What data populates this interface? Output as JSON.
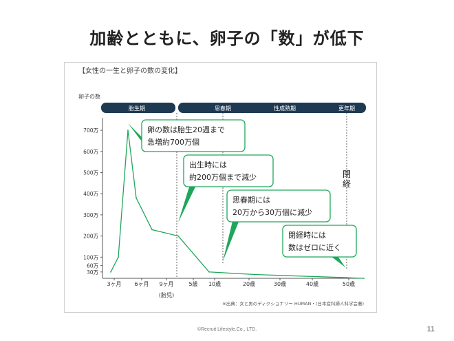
{
  "slide_title": "加齢とともに、卵子の「数」が低下",
  "footer": "©Recruit Lifestyle.Co., LTD.",
  "page_number": "11",
  "colors": {
    "line": "#1fa65a",
    "bar": "#1e3a52",
    "callout_border": "#1fa65a",
    "axis": "#555555"
  },
  "chart_data": {
    "type": "line",
    "title": "【女性の一生と卵子の数の変化】",
    "ylabel": "卵子の数",
    "source": "※出典：女と男のディクショナリー HUMAN・(日本産科婦人科学会著)",
    "ylim": [
      0,
      750
    ],
    "y_ticks": [
      {
        "value": 30,
        "label": "30万"
      },
      {
        "value": 60,
        "label": "60万"
      },
      {
        "value": 100,
        "label": "100万"
      },
      {
        "value": 200,
        "label": "200万"
      },
      {
        "value": 300,
        "label": "300万"
      },
      {
        "value": 400,
        "label": "400万"
      },
      {
        "value": 500,
        "label": "500万"
      },
      {
        "value": 600,
        "label": "600万"
      },
      {
        "value": 700,
        "label": "700万"
      }
    ],
    "x_ticks": [
      "3ヶ月",
      "6ヶ月",
      "9ヶ月",
      "5歳",
      "10歳",
      "20歳",
      "30歳",
      "40歳",
      "50歳"
    ],
    "x_sub_label": "(胎児)",
    "stages": [
      "胎生期",
      "思春期",
      "性成熟期",
      "更年期"
    ],
    "series": [
      {
        "points": [
          {
            "x": "2ヶ月",
            "y": 30
          },
          {
            "x": "3ヶ月",
            "y": 100
          },
          {
            "x": "5ヶ月",
            "y": 700
          },
          {
            "x": "6ヶ月",
            "y": 380
          },
          {
            "x": "7.5ヶ月",
            "y": 230
          },
          {
            "x": "出生",
            "y": 200
          },
          {
            "x": "10歳",
            "y": 30
          },
          {
            "x": "20歳",
            "y": 18
          },
          {
            "x": "50歳",
            "y": 3
          },
          {
            "x": "55歳",
            "y": 0
          }
        ]
      }
    ],
    "annotations": [
      {
        "lines": [
          "卵の数は胎生20週まで",
          "急増約700万個"
        ]
      },
      {
        "lines": [
          "出生時には",
          "約200万個まで減少"
        ]
      },
      {
        "lines": [
          "思春期には",
          "20万から30万個に減少"
        ]
      },
      {
        "lines": [
          "閉経時には",
          "数はゼロに近く"
        ]
      }
    ],
    "menopause_label": [
      "閉",
      "経"
    ]
  }
}
